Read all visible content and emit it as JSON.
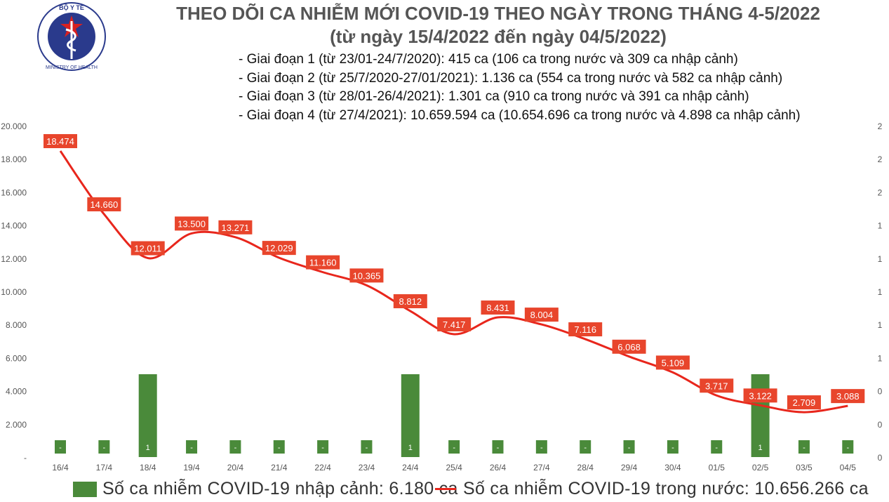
{
  "header": {
    "logo_text_top": "BỘ Y TẾ",
    "logo_text_bottom": "MINISTRY OF HEALTH",
    "title": "THEO DÕI CA NHIỄM MỚI COVID-19 THEO NGÀY TRONG THÁNG 4-5/2022",
    "subtitle": "(từ ngày 15/4/2022 đến ngày 04/5/2022)",
    "notes": [
      "- Giai đoạn 1 (từ 23/01-24/7/2020): 415 ca (106 ca trong nước và 309 ca nhập cảnh)",
      "- Giai đoạn 2 (từ 25/7/2020-27/01/2021): 1.136 ca (554 ca trong nước và 582 ca nhập cảnh)",
      "- Giai đoạn 3 (từ 28/01-26/4/2021): 1.301 ca (910 ca trong nước và 391 ca nhập cảnh)",
      "- Giai đoạn 4 (từ 27/4/2021): 10.659.594 ca (10.654.696 ca trong nước và 4.898 ca nhập cảnh)"
    ]
  },
  "colors": {
    "bar": "#4a8a3a",
    "line": "#e8261c",
    "label_box": "#e8452c",
    "axis_text": "#555555"
  },
  "chart_data": {
    "type": "bar+line",
    "categories": [
      "16/4",
      "17/4",
      "18/4",
      "19/4",
      "20/4",
      "21/4",
      "22/4",
      "23/4",
      "24/4",
      "25/4",
      "26/4",
      "27/4",
      "28/4",
      "29/4",
      "30/4",
      "01/5",
      "02/5",
      "03/5",
      "04/5"
    ],
    "left_axis": {
      "ylim": [
        0,
        20000
      ],
      "ticks": [
        "-",
        "2.000",
        "4.000",
        "6.000",
        "8.000",
        "10.000",
        "12.000",
        "14.000",
        "16.000",
        "18.000",
        "20.000"
      ]
    },
    "right_axis": {
      "ylim": [
        0,
        2
      ],
      "ticks": [
        "0",
        "0",
        "0",
        "1",
        "1",
        "1",
        "1",
        "1",
        "2",
        "2",
        "2"
      ]
    },
    "series": [
      {
        "name": "Số ca nhiễm COVID-19 nhập cảnh: 6.180 ca",
        "kind": "bar",
        "axis": "right",
        "values": [
          0,
          0,
          1,
          0,
          0,
          0,
          0,
          0,
          1,
          0,
          0,
          0,
          0,
          0,
          0,
          0,
          1,
          0,
          0
        ],
        "labels": [
          "-",
          "-",
          "1",
          "-",
          "-",
          "-",
          "-",
          "-",
          "1",
          "-",
          "-",
          "-",
          "-",
          "-",
          "-",
          "-",
          "1",
          "-",
          "-"
        ]
      },
      {
        "name": "Số ca nhiễm COVID-19 trong nước: 10.656.266 ca",
        "kind": "line",
        "axis": "left",
        "values": [
          18474,
          14660,
          12011,
          13500,
          13271,
          12029,
          11160,
          10365,
          8812,
          7417,
          8431,
          8004,
          7116,
          6068,
          5109,
          3717,
          3122,
          2709,
          3088
        ],
        "labels": [
          "18.474",
          "14.660",
          "12.011",
          "13.500",
          "13.271",
          "12.029",
          "11.160",
          "10.365",
          "8.812",
          "7.417",
          "8.431",
          "8.004",
          "7.116",
          "6.068",
          "5.109",
          "3.717",
          "3.122",
          "2.709",
          "3.088"
        ]
      }
    ],
    "legend_position": "bottom"
  }
}
